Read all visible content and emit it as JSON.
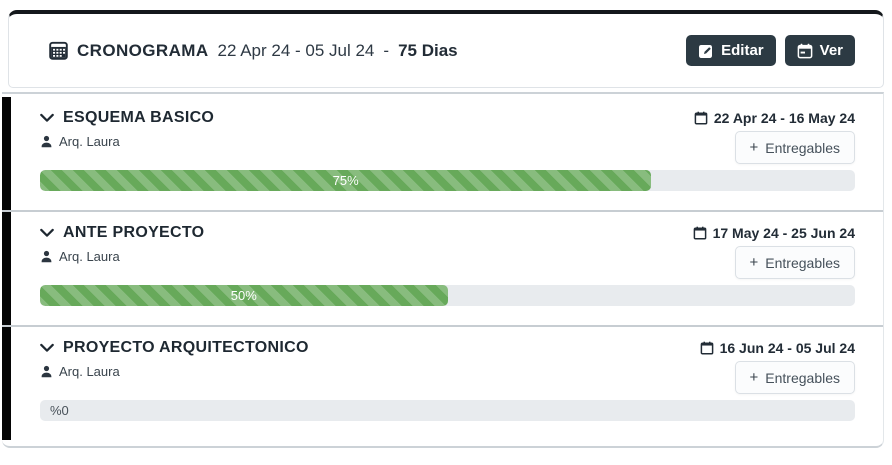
{
  "header": {
    "title": "CRONOGRAMA",
    "date_range": "22 Apr 24 - 05 Jul 24",
    "separator": "-",
    "duration": "75 Dias",
    "edit_button": "Editar",
    "view_button": "Ver"
  },
  "colors": {
    "accent_dark": "#2c3a43",
    "progress_green": "#67a95a",
    "track_gray": "#e8ebee",
    "section_bar_black": "#050505"
  },
  "sections": [
    {
      "title": "ESQUEMA BASICO",
      "assignee": "Arq. Laura",
      "date_range": "22 Apr 24 - 16 May 24",
      "progress_percent": 75,
      "progress_label": "75%",
      "add_plus": "+",
      "add_label": "Entregables"
    },
    {
      "title": "ANTE PROYECTO",
      "assignee": "Arq. Laura",
      "date_range": "17 May 24 - 25 Jun 24",
      "progress_percent": 50,
      "progress_label": "50%",
      "add_plus": "+",
      "add_label": "Entregables"
    },
    {
      "title": "PROYECTO ARQUITECTONICO",
      "assignee": "Arq. Laura",
      "date_range": "16 Jun 24 - 05 Jul 24",
      "progress_percent": 0,
      "progress_label": "%0",
      "add_plus": "+",
      "add_label": "Entregables"
    }
  ]
}
